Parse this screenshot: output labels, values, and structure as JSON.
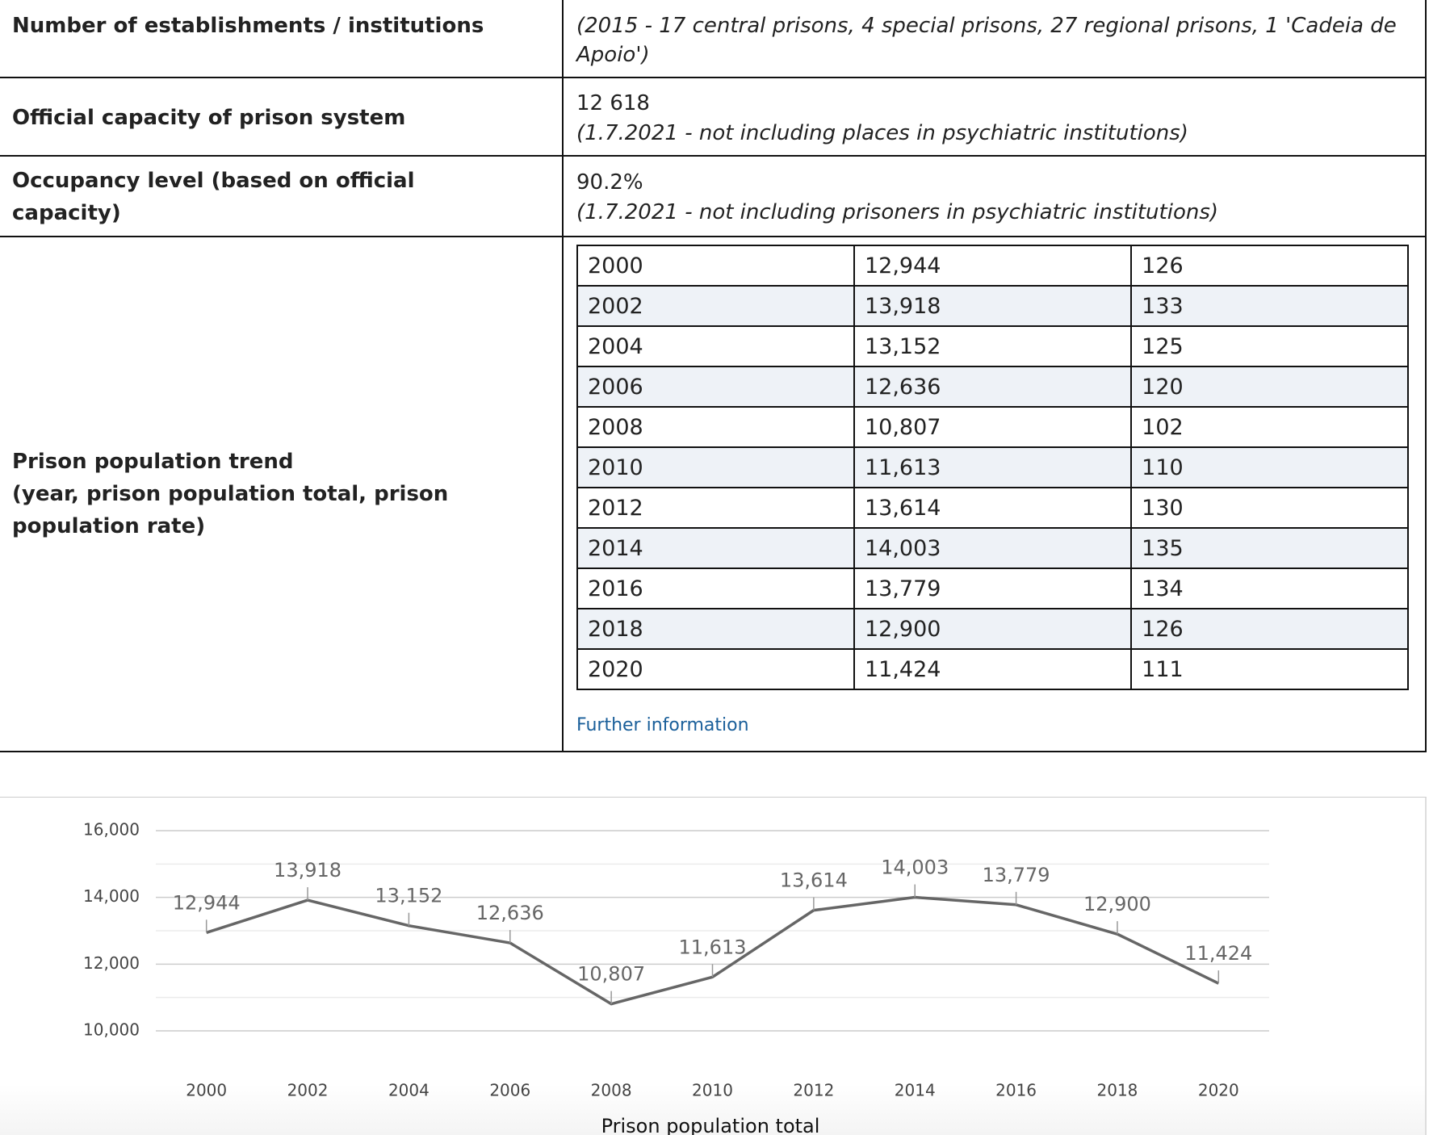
{
  "info_table": {
    "rows": [
      {
        "label": "Number of establishments / institutions",
        "note": "(2015 - 17 central prisons, 4 special prisons, 27 regional prisons, 1 'Cadeia de Apoio')"
      },
      {
        "label": "Official capacity of prison system",
        "value": "12 618",
        "note": "(1.7.2021 - not including places in psychiatric institutions)"
      },
      {
        "label": "Occupancy level (based on official capacity)",
        "value": "90.2%",
        "note": "(1.7.2021 - not including prisoners in psychiatric institutions)"
      }
    ]
  },
  "trend": {
    "label": "Prison population trend",
    "sublabel": "(year, prison population total, prison population rate)",
    "rows": [
      [
        "2000",
        "12,944",
        "126"
      ],
      [
        "2002",
        "13,918",
        "133"
      ],
      [
        "2004",
        "13,152",
        "125"
      ],
      [
        "2006",
        "12,636",
        "120"
      ],
      [
        "2008",
        "10,807",
        "102"
      ],
      [
        "2010",
        "11,613",
        "110"
      ],
      [
        "2012",
        "13,614",
        "130"
      ],
      [
        "2014",
        "14,003",
        "135"
      ],
      [
        "2016",
        "13,779",
        "134"
      ],
      [
        "2018",
        "12,900",
        "126"
      ],
      [
        "2020",
        "11,424",
        "111"
      ]
    ],
    "link": "Further information"
  },
  "chart_data": {
    "type": "line",
    "categories": [
      "2000",
      "2002",
      "2004",
      "2006",
      "2008",
      "2010",
      "2012",
      "2014",
      "2016",
      "2018",
      "2020"
    ],
    "series": [
      {
        "name": "Prison population total",
        "color": "#666666",
        "values": [
          12944,
          13918,
          13152,
          12636,
          10807,
          11613,
          13614,
          14003,
          13779,
          12900,
          11424
        ],
        "value_labels": [
          "12,944",
          "13,918",
          "13,152",
          "12,636",
          "10,807",
          "11,613",
          "13,614",
          "14,003",
          "13,779",
          "12,900",
          "11,424"
        ]
      }
    ],
    "ylim": [
      10000,
      16000
    ],
    "yticks": [
      {
        "value": 10000,
        "label": "10,000"
      },
      {
        "value": 12000,
        "label": "12,000"
      },
      {
        "value": 14000,
        "label": "14,000"
      },
      {
        "value": 16000,
        "label": "16,000"
      }
    ],
    "grid": true,
    "minor_grid": true
  }
}
